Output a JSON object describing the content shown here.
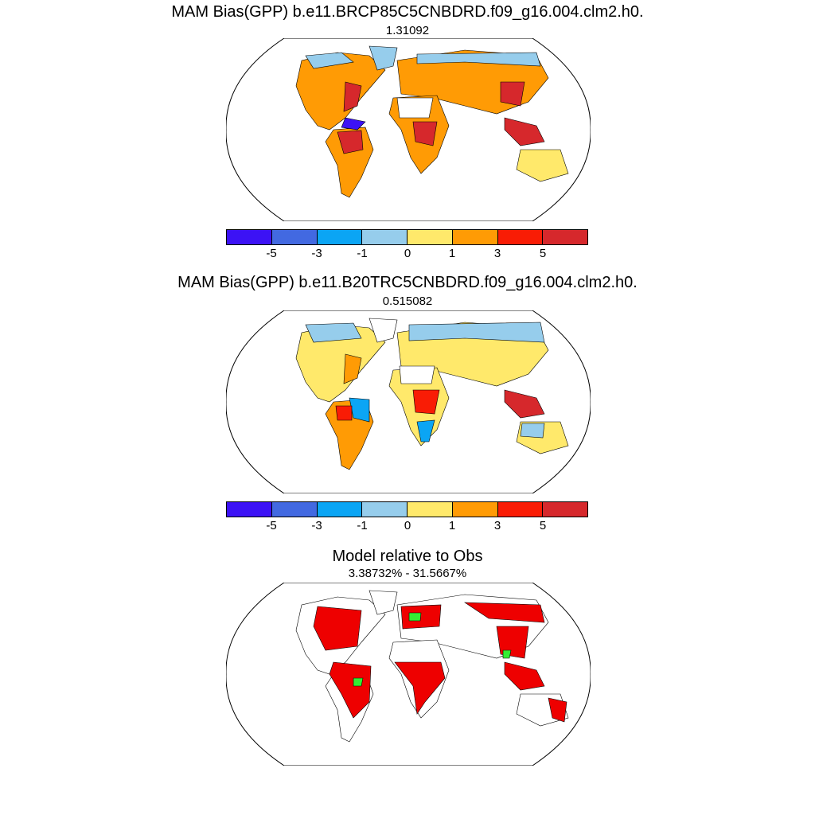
{
  "panels": [
    {
      "title": "MAM Bias(GPP) b.e11.BRCP85C5CNBDRD.f09_g16.004.clm2.h0.",
      "value": "1.31092"
    },
    {
      "title": "MAM Bias(GPP) b.e11.B20TRC5CNBDRD.f09_g16.004.clm2.h0.",
      "value": "0.515082"
    },
    {
      "title": "Model relative to Obs",
      "value": "3.38732% - 31.5667%"
    }
  ],
  "colorbar": {
    "colors": [
      "#3c12f5",
      "#4269e1",
      "#0ba5f4",
      "#96cdec",
      "#ffe96b",
      "#ff9b05",
      "#f91c05",
      "#d6282c"
    ],
    "labels": [
      "-5",
      "-3",
      "-1",
      "0",
      "1",
      "3",
      "5"
    ]
  },
  "palette": {
    "land_outline": "#000000",
    "relative_high": "#ee0000",
    "relative_low": "#33ee33"
  }
}
